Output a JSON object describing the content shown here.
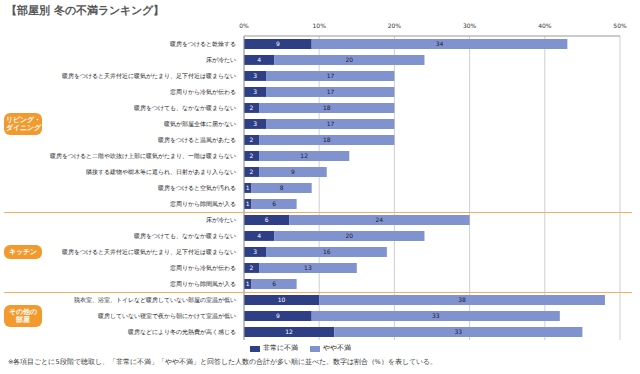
{
  "chart_data": {
    "type": "bar",
    "title": "【部屋別 冬の不満ランキング】",
    "orientation": "horizontal",
    "stacked": true,
    "data_labels": true,
    "grid": true,
    "legend": "bottom",
    "categories": [
      "暖房をつけると乾燥する",
      "床が冷たい",
      "暖房をつけると天井付近に暖気がたまり、足下付近は暖まらない",
      "窓周りから冷気が伝わる",
      "暖房をつけても、なかなか暖まらない",
      "暖気が部屋全体に届かない",
      "暖房をつけると温風があたる",
      "暖房をつけると二階や吹抜け上部に暖気がたまり、一階は暖まらない",
      "隣接する建物や樹木等に遮られ、日射があまり入らない",
      "暖房をつけると空気が汚れる",
      "窓周りから隙間風が入る",
      "床が冷たい",
      "暖房をつけても、なかなか暖まらない",
      "暖房をつけると天井付近に暖気がたまり、足下付近は暖まらない",
      "窓周りから冷気が伝わる",
      "窓周りから隙間風が入る",
      "脱衣室、浴室、トイレなど暖房していない部屋の室温が低い",
      "暖房していない寝室で夜から朝にかけて室温が低い",
      "暖房などにより冬の光熱費が高く感じる"
    ],
    "groups": [
      {
        "name": "リビング・ダイニング",
        "count": 11
      },
      {
        "name": "キッチン",
        "count": 5
      },
      {
        "name": "その他の部屋",
        "count": 3
      }
    ],
    "series": [
      {
        "name": "非常に不満",
        "color": "#2e3f86",
        "values": [
          9,
          4,
          3,
          3,
          2,
          3,
          2,
          2,
          2,
          1,
          1,
          6,
          4,
          3,
          2,
          1,
          10,
          9,
          12
        ]
      },
      {
        "name": "やや不満",
        "color": "#8193cf",
        "values": [
          34,
          20,
          17,
          17,
          18,
          17,
          18,
          12,
          9,
          8,
          6,
          24,
          20,
          16,
          13,
          6,
          38,
          33,
          33
        ]
      }
    ],
    "xlim": [
      0,
      50
    ],
    "xticks": [
      {
        "value": 0,
        "label": "0%"
      },
      {
        "value": 10,
        "label": "10%"
      },
      {
        "value": 20,
        "label": "20%"
      },
      {
        "value": 30,
        "label": "30%"
      },
      {
        "value": 40,
        "label": "40%"
      },
      {
        "value": 50,
        "label": "50%"
      }
    ],
    "footnote": "※各項目ごとに5段階で聴取し、「非常に不満」「やや不満」と回答した人数の合計が多い順に並べた。数字は割合（%）を表している。"
  }
}
